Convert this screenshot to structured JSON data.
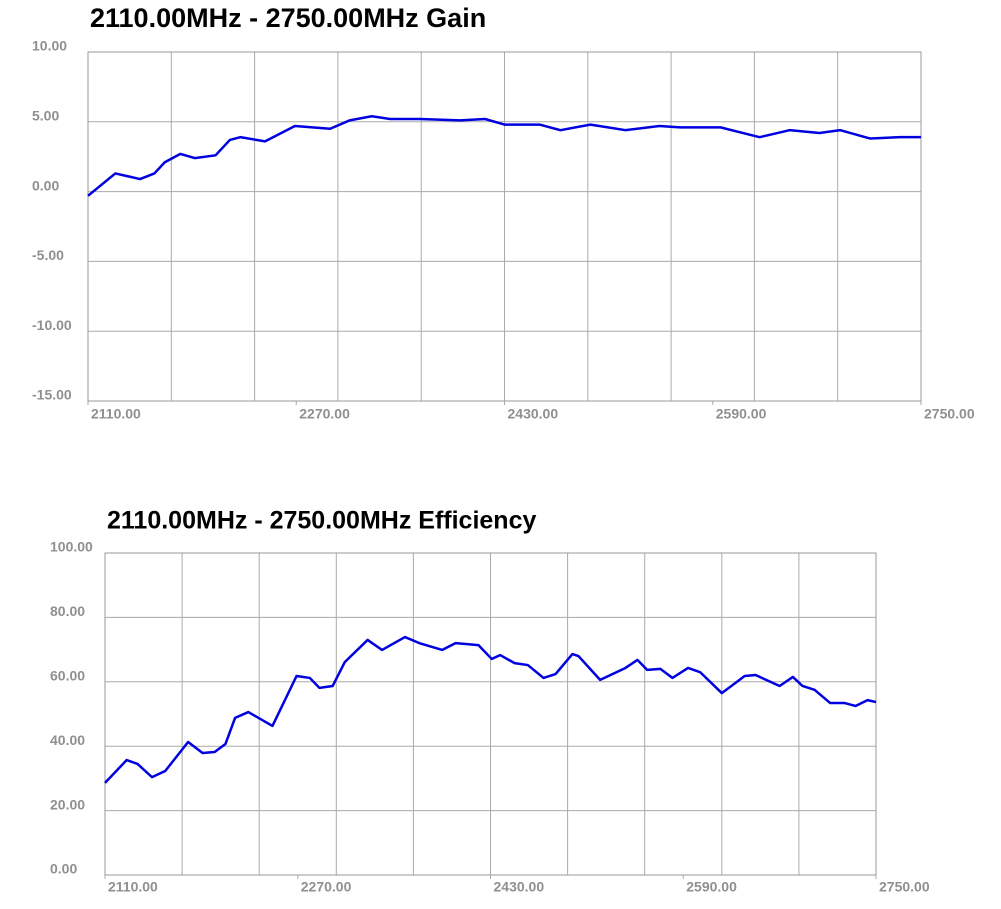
{
  "chart_data": [
    {
      "type": "line",
      "title": "2110.00MHz - 2750.00MHz Gain",
      "color": "#0000e0",
      "grid": true,
      "x": [
        2110,
        2131,
        2150,
        2161,
        2169,
        2181,
        2192,
        2208,
        2219,
        2227,
        2246,
        2269,
        2296,
        2311,
        2328,
        2342,
        2365,
        2396,
        2415,
        2430,
        2457,
        2473,
        2496,
        2523,
        2549,
        2565,
        2596,
        2626,
        2649,
        2672,
        2688,
        2711,
        2734,
        2750
      ],
      "values": [
        -0.3,
        1.3,
        0.9,
        1.3,
        2.1,
        2.7,
        2.4,
        2.6,
        3.7,
        3.9,
        3.6,
        4.7,
        4.5,
        5.1,
        5.4,
        5.2,
        5.2,
        5.1,
        5.2,
        4.8,
        4.8,
        4.4,
        4.8,
        4.4,
        4.7,
        4.6,
        4.6,
        3.9,
        4.4,
        4.2,
        4.4,
        3.8,
        3.9,
        3.9
      ],
      "xlim": [
        2110,
        2750
      ],
      "xticks": [
        {
          "value": 2110,
          "label": "2110.00"
        },
        {
          "value": 2270,
          "label": "2270.00"
        },
        {
          "value": 2430,
          "label": "2430.00"
        },
        {
          "value": 2590,
          "label": "2590.00"
        },
        {
          "value": 2750,
          "label": "2750.00"
        }
      ],
      "xgrid": [
        2110,
        2174,
        2238,
        2302,
        2366,
        2430,
        2494,
        2558,
        2622,
        2686,
        2750
      ],
      "ylim": [
        -15,
        10
      ],
      "yticks": [
        {
          "value": 10,
          "label": "10.00"
        },
        {
          "value": 5,
          "label": "5.00"
        },
        {
          "value": 0,
          "label": "0.00"
        },
        {
          "value": -5,
          "label": "-5.00"
        },
        {
          "value": -10,
          "label": "-10.00"
        },
        {
          "value": -15,
          "label": "-15.00"
        }
      ]
    },
    {
      "type": "line",
      "title": "2110.00MHz - 2750.00MHz Efficiency",
      "color": "#0000e0",
      "grid": true,
      "x": [
        2110,
        2128,
        2137,
        2149,
        2160,
        2179,
        2191,
        2201,
        2210,
        2218,
        2229,
        2249,
        2269,
        2280,
        2288,
        2299,
        2309,
        2328,
        2340,
        2359,
        2371,
        2390,
        2401,
        2420,
        2431,
        2438,
        2450,
        2461,
        2474,
        2484,
        2498,
        2503,
        2521,
        2542,
        2552,
        2560,
        2571,
        2581,
        2594,
        2604,
        2622,
        2641,
        2650,
        2670,
        2681,
        2689,
        2699,
        2712,
        2724,
        2733,
        2743,
        2750
      ],
      "values": [
        28.6,
        35.7,
        34.5,
        30.4,
        32.3,
        41.3,
        37.9,
        38.2,
        40.7,
        48.8,
        50.6,
        46.3,
        61.8,
        61.2,
        58.1,
        58.7,
        66.1,
        73,
        69.9,
        73.9,
        72,
        69.9,
        72,
        71.4,
        67.1,
        68.3,
        65.8,
        65.2,
        61.2,
        62.4,
        68.6,
        68,
        60.6,
        64.3,
        66.8,
        63.7,
        64,
        61.2,
        64.3,
        63,
        56.5,
        61.8,
        62.1,
        58.7,
        61.5,
        58.7,
        57.5,
        53.4,
        53.4,
        52.5,
        54.3,
        53.7
      ],
      "xlim": [
        2110,
        2750
      ],
      "xticks": [
        {
          "value": 2110,
          "label": "2110.00"
        },
        {
          "value": 2270,
          "label": "2270.00"
        },
        {
          "value": 2430,
          "label": "2430.00"
        },
        {
          "value": 2590,
          "label": "2590.00"
        },
        {
          "value": 2750,
          "label": "2750.00"
        }
      ],
      "xgrid": [
        2110,
        2174,
        2238,
        2302,
        2366,
        2430,
        2494,
        2558,
        2622,
        2686,
        2750
      ],
      "ylim": [
        0,
        100
      ],
      "yticks": [
        {
          "value": 100,
          "label": "100.00"
        },
        {
          "value": 80,
          "label": "80.00"
        },
        {
          "value": 60,
          "label": "60.00"
        },
        {
          "value": 40,
          "label": "40.00"
        },
        {
          "value": 20,
          "label": "20.00"
        },
        {
          "value": 0,
          "label": "0.00"
        }
      ]
    }
  ]
}
